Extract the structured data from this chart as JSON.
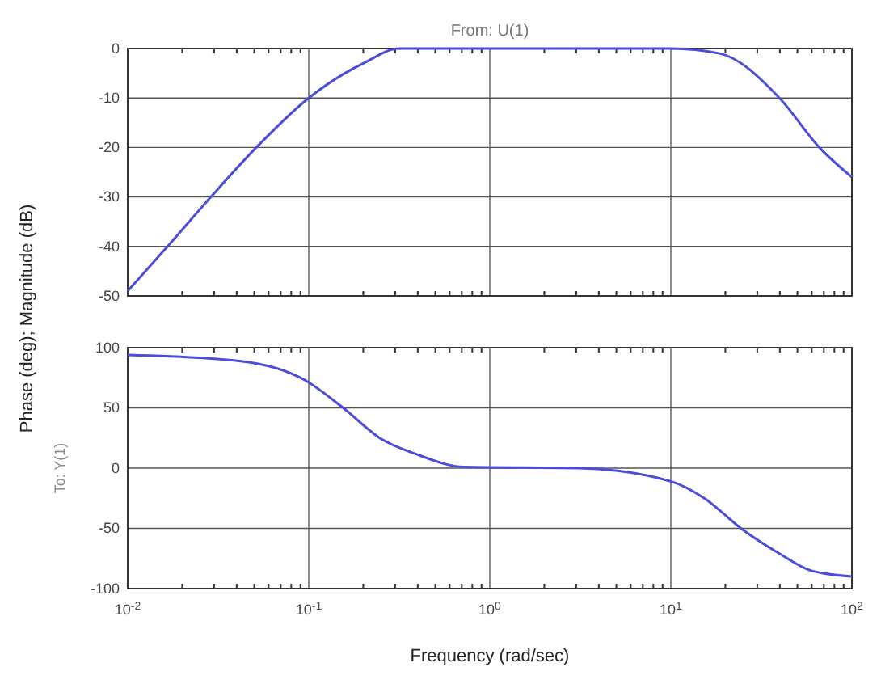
{
  "chart_data": [
    {
      "type": "line",
      "title": "From: U(1)",
      "ylabel": "Phase (deg); Magnitude (dB)",
      "log": "x",
      "grid": true,
      "tick_labels": "y",
      "xlim": [
        0.01,
        100
      ],
      "xticks": [
        0.01,
        0.1,
        1,
        10,
        100
      ],
      "ylim": [
        -50,
        0
      ],
      "yticks": [
        -50,
        -40,
        -30,
        -20,
        -10,
        0
      ],
      "series": [
        {
          "color": "#4b4bdc",
          "x": [
            0.01,
            0.0166,
            0.0288,
            0.0513,
            0.1,
            0.158,
            0.2,
            0.316,
            1,
            10,
            18.6,
            39.8,
            66.1,
            100
          ],
          "values": [
            -49,
            -40,
            -30,
            -20,
            -10,
            -5,
            -3,
            0,
            0,
            0,
            -1,
            -10,
            -20,
            -26
          ]
        }
      ]
    },
    {
      "type": "line",
      "ylabel": "To: Y(1)",
      "xlabel": "Frequency (rad/sec)",
      "log": "x",
      "grid": true,
      "xlim": [
        0.01,
        100
      ],
      "xticks": [
        {
          "value": 0.01,
          "label": "10$^{-2}$"
        },
        {
          "value": 0.1,
          "label": "10$^{-1}$"
        },
        {
          "value": 1,
          "label": "10$^{0}$"
        },
        {
          "value": 10,
          "label": "10$^{1}$"
        },
        {
          "value": 100,
          "label": "10$^{2}$"
        }
      ],
      "ylim": [
        -100,
        100
      ],
      "yticks": [
        -100,
        -50,
        0,
        50,
        100
      ],
      "series": [
        {
          "color": "#4b4bdc",
          "x": [
            0.01,
            0.0413,
            0.0955,
            0.155,
            0.253,
            0.387,
            0.72,
            3.1,
            10,
            15.3,
            24.4,
            39.8,
            59.2,
            100
          ],
          "values": [
            94,
            89,
            73,
            50,
            24,
            12,
            1,
            0,
            -11,
            -25,
            -50,
            -71,
            -85,
            -90
          ]
        }
      ]
    }
  ]
}
